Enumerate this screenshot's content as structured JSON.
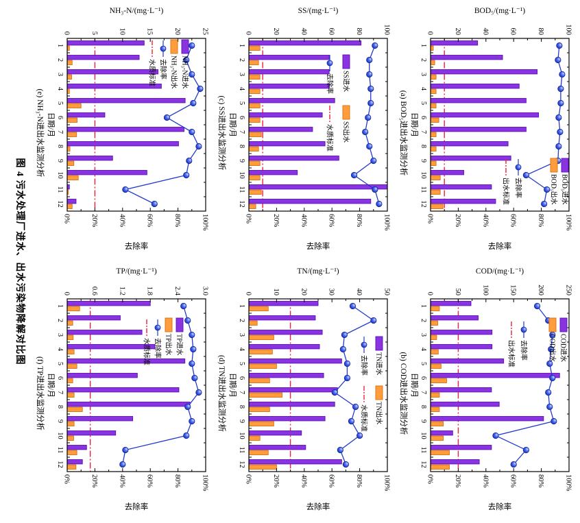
{
  "figure": {
    "caption": "图 4  污水处理厂进水、出水污染物降解对比图"
  },
  "common": {
    "x_axis_label": "日期/月",
    "removal_axis_label": "去除率",
    "months": [
      "1",
      "2",
      "3",
      "4",
      "5",
      "6",
      "7",
      "8",
      "9",
      "10",
      "11",
      "12"
    ],
    "removal_ticks": [
      "0%",
      "20%",
      "40%",
      "60%",
      "80%",
      "100%"
    ],
    "removal_lim": [
      0,
      100
    ]
  },
  "colors": {
    "influent_bar": "#8a33e0",
    "influent_edge": "#5a11b5",
    "effluent_bar": "#ff9c3c",
    "effluent_edge": "#d96e0e",
    "removal_line": "#2339ce",
    "marker_stroke": "#14249b",
    "marker_light": "#c9d6ff",
    "marker_mid": "#4a6bf0",
    "marker_dark": "#1b2fb4",
    "standard_line": "#f31e38",
    "axis": "#000000",
    "background": "#ffffff"
  },
  "chart_data": [
    {
      "id": "a",
      "type": "bar",
      "title": "BOD₅/(mg·L⁻¹)",
      "caption": "(a) BOD₅进出水监测分析",
      "xlabel": "日期/月",
      "y2label": "去除率",
      "ylim": [
        0,
        100
      ],
      "yticks": [
        "0",
        "20",
        "40",
        "60",
        "80",
        "100"
      ],
      "y2ticks": [
        "0%",
        "20%",
        "40%",
        "60%",
        "80%",
        "100%"
      ],
      "standard": {
        "value": 10,
        "label": "出水标准"
      },
      "legend": {
        "influent": "BOD₅进水",
        "effluent": "BOD₅出水",
        "removal": "去除率"
      },
      "categories": [
        "1",
        "2",
        "3",
        "4",
        "5",
        "6",
        "7",
        "8",
        "9",
        "10",
        "11",
        "12"
      ],
      "series": {
        "influent": [
          34,
          52,
          77,
          64,
          69,
          78,
          69,
          56,
          58,
          24,
          44,
          47
        ],
        "effluent": [
          2,
          3,
          4,
          4,
          4,
          6,
          4,
          4,
          4,
          7,
          7,
          9
        ],
        "removal_pct": [
          93,
          92,
          95,
          94,
          94,
          92.5,
          93.5,
          92.5,
          92,
          69,
          84,
          82
        ]
      }
    },
    {
      "id": "b",
      "type": "bar",
      "title": "COD/(mg·L⁻¹)",
      "caption": "(b) COD进出水监测分析",
      "xlabel": "日期/月",
      "y2label": "去除率",
      "ylim": [
        0,
        250
      ],
      "yticks": [
        "0",
        "50",
        "100",
        "150",
        "200",
        "250"
      ],
      "y2ticks": [
        "0%",
        "20%",
        "40%",
        "60%",
        "80%",
        "100%"
      ],
      "standard": {
        "value": 50,
        "label": "出水标准"
      },
      "legend": {
        "influent": "COD进水",
        "effluent": "COD出水",
        "removal": "去除率"
      },
      "categories": [
        "1",
        "2",
        "3",
        "4",
        "5",
        "6",
        "7",
        "8",
        "9",
        "10",
        "11",
        "12"
      ],
      "series": {
        "influent": [
          73,
          86,
          111,
          111,
          132,
          233,
          110,
          124,
          204,
          40,
          110,
          88
        ],
        "effluent": [
          16,
          13,
          11,
          14,
          19,
          29,
          16,
          16,
          23,
          23,
          34,
          34
        ],
        "removal_pct": [
          77,
          85,
          88,
          87,
          86,
          88,
          85,
          86,
          89,
          47,
          69,
          60
        ]
      }
    },
    {
      "id": "c",
      "type": "bar",
      "title": "SS/(mg·L⁻¹)",
      "caption": "(c) SS进出水监测分析",
      "xlabel": "日期/月",
      "y2label": "去除率",
      "ylim": [
        0,
        100
      ],
      "yticks": [
        "0",
        "20",
        "40",
        "60",
        "80",
        "100"
      ],
      "y2ticks": [
        "0%",
        "20%",
        "40%",
        "60%",
        "80%",
        "100%"
      ],
      "standard": {
        "value": 10,
        "label": "水质标准"
      },
      "legend": {
        "influent": "SS进水",
        "effluent": "SS出水",
        "removal": "去除率"
      },
      "categories": [
        "1",
        "2",
        "3",
        "4",
        "5",
        "6",
        "7",
        "8",
        "9",
        "10",
        "11",
        "12"
      ],
      "series": {
        "influent": [
          81,
          58,
          58,
          58,
          62,
          53,
          46,
          55,
          65,
          35,
          100,
          88
        ],
        "effluent": [
          8,
          7,
          8,
          8,
          8,
          8,
          9,
          7,
          8,
          8,
          9,
          5
        ],
        "removal_pct": [
          91,
          87,
          87,
          88,
          88,
          86,
          84,
          87,
          90,
          76,
          91,
          94
        ]
      }
    },
    {
      "id": "d",
      "type": "bar",
      "title": "TN/(mg·L⁻¹)",
      "caption": "(d) TN进出水监测分析",
      "xlabel": "日期/月",
      "y2label": "去除率",
      "ylim": [
        0,
        50
      ],
      "yticks": [
        "0",
        "10",
        "20",
        "30",
        "40",
        "50"
      ],
      "y2ticks": [
        "0%",
        "20%",
        "40%",
        "60%",
        "80%",
        "100%"
      ],
      "standard": {
        "value": 15,
        "label": "水质标准"
      },
      "legend": {
        "influent": "TN进水",
        "effluent": "TN出水",
        "removal": "去除率"
      },
      "categories": [
        "1",
        "2",
        "3",
        "4",
        "5",
        "6",
        "7",
        "8",
        "9",
        "10",
        "11",
        "12"
      ],
      "series": {
        "influent": [
          25,
          24,
          26.5,
          25.5,
          33.5,
          27,
          32,
          31,
          27.5,
          19,
          20.5,
          33.5
        ],
        "effluent": [
          7,
          3,
          9,
          8.5,
          10,
          7.5,
          12,
          7.5,
          9,
          4,
          7,
          10
        ],
        "removal_pct": [
          75,
          90,
          69,
          68,
          71,
          71,
          62,
          77,
          74,
          80,
          66,
          70
        ]
      }
    },
    {
      "id": "e",
      "type": "bar",
      "title": "NH₃-N/(mg·L⁻¹)",
      "caption": "(e) NH₃-N进出水监测分析",
      "xlabel": "日期/月",
      "y2label": "去除率",
      "ylim": [
        0,
        25
      ],
      "yticks": [
        "0",
        "5",
        "10",
        "15",
        "20",
        "25"
      ],
      "y2ticks": [
        "0%",
        "20%",
        "40%",
        "60%",
        "80%",
        "100%"
      ],
      "standard": {
        "value": 5,
        "label": "水质标准"
      },
      "legend": {
        "influent": "NH₃-N进水",
        "effluent": "NH₃-N出水",
        "removal": "去除率"
      },
      "categories": [
        "1",
        "2",
        "3",
        "4",
        "5",
        "6",
        "7",
        "8",
        "9",
        "10",
        "11",
        "12"
      ],
      "series": {
        "influent": [
          13.9,
          13,
          16.4,
          17,
          21.3,
          6.8,
          21.1,
          20.1,
          8.2,
          14.4,
          0.4,
          1.6
        ],
        "effluent": [
          0.4,
          0.9,
          0.8,
          0.4,
          2.5,
          1.8,
          1.7,
          0.5,
          1.2,
          2,
          0.2,
          0.9
        ],
        "removal_pct": [
          90,
          86,
          90,
          96,
          91,
          72,
          90,
          95,
          88,
          86,
          42,
          63
        ]
      }
    },
    {
      "id": "f",
      "type": "bar",
      "title": "TP/(mg·L⁻¹)",
      "caption": "(f) TP进出水监测分析",
      "xlabel": "日期/月",
      "y2label": "去除率",
      "ylim": [
        0,
        3.0
      ],
      "yticks": [
        "0",
        "0.6",
        "1.2",
        "1.8",
        "2.4",
        "3.0"
      ],
      "y2ticks": [
        "0%",
        "20%",
        "40%",
        "60%",
        "80%",
        "100%"
      ],
      "standard": {
        "value": 0.5,
        "label": "水质标准"
      },
      "legend": {
        "influent": "TP进水",
        "effluent": "TP出水",
        "removal": "去除率"
      },
      "categories": [
        "1",
        "2",
        "3",
        "4",
        "5",
        "6",
        "7",
        "8",
        "9",
        "10",
        "11",
        "12"
      ],
      "series": {
        "influent": [
          1.8,
          1.15,
          1.62,
          1.9,
          2.55,
          1.52,
          2.42,
          2.66,
          1.42,
          1.05,
          0.42,
          0.33
        ],
        "effluent": [
          0.27,
          0.12,
          0.13,
          0.15,
          0.21,
          0.12,
          0.15,
          0.33,
          0.15,
          0.14,
          0.21,
          0.19
        ],
        "removal_pct": [
          84,
          87,
          90,
          91,
          90,
          92,
          95,
          87,
          90,
          86,
          42,
          40
        ]
      }
    }
  ]
}
